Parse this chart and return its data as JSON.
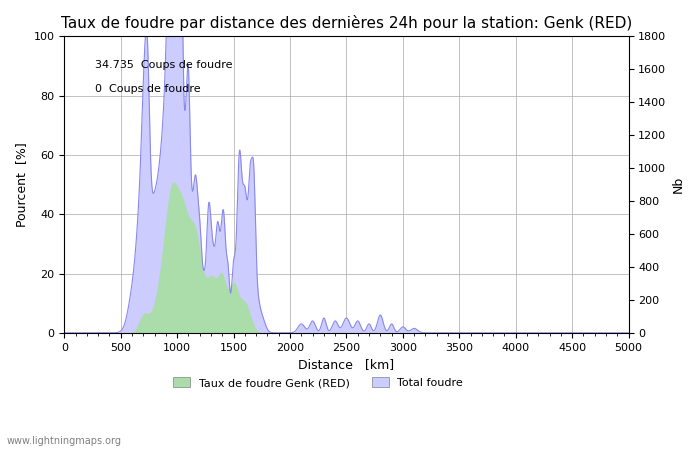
{
  "title": "Taux de foudre par distance des dernières 24h pour la station: Genk (RED)",
  "xlabel": "Distance   [km]",
  "ylabel_left": "Pourcent  [%]",
  "ylabel_right": "Nb",
  "annotation_line1": "34.735  Coups de foudre",
  "annotation_line2": "0  Coups de foudre",
  "xlim": [
    0,
    5000
  ],
  "ylim_left": [
    0,
    100
  ],
  "ylim_right": [
    0,
    1800
  ],
  "xticks": [
    0,
    500,
    1000,
    1500,
    2000,
    2500,
    3000,
    3500,
    4000,
    4500,
    5000
  ],
  "yticks_left": [
    0,
    20,
    40,
    60,
    80,
    100
  ],
  "yticks_right": [
    0,
    200,
    400,
    600,
    800,
    1000,
    1200,
    1400,
    1600,
    1800
  ],
  "line_color": "#8888ee",
  "fill_color_total": "#ccccff",
  "fill_color_rate": "#aaddaa",
  "background_color": "#ffffff",
  "legend_label_green": "Taux de foudre Genk (RED)",
  "legend_label_blue": "Total foudre",
  "watermark": "www.lightningmaps.org",
  "title_fontsize": 11,
  "axis_fontsize": 9,
  "tick_fontsize": 8
}
